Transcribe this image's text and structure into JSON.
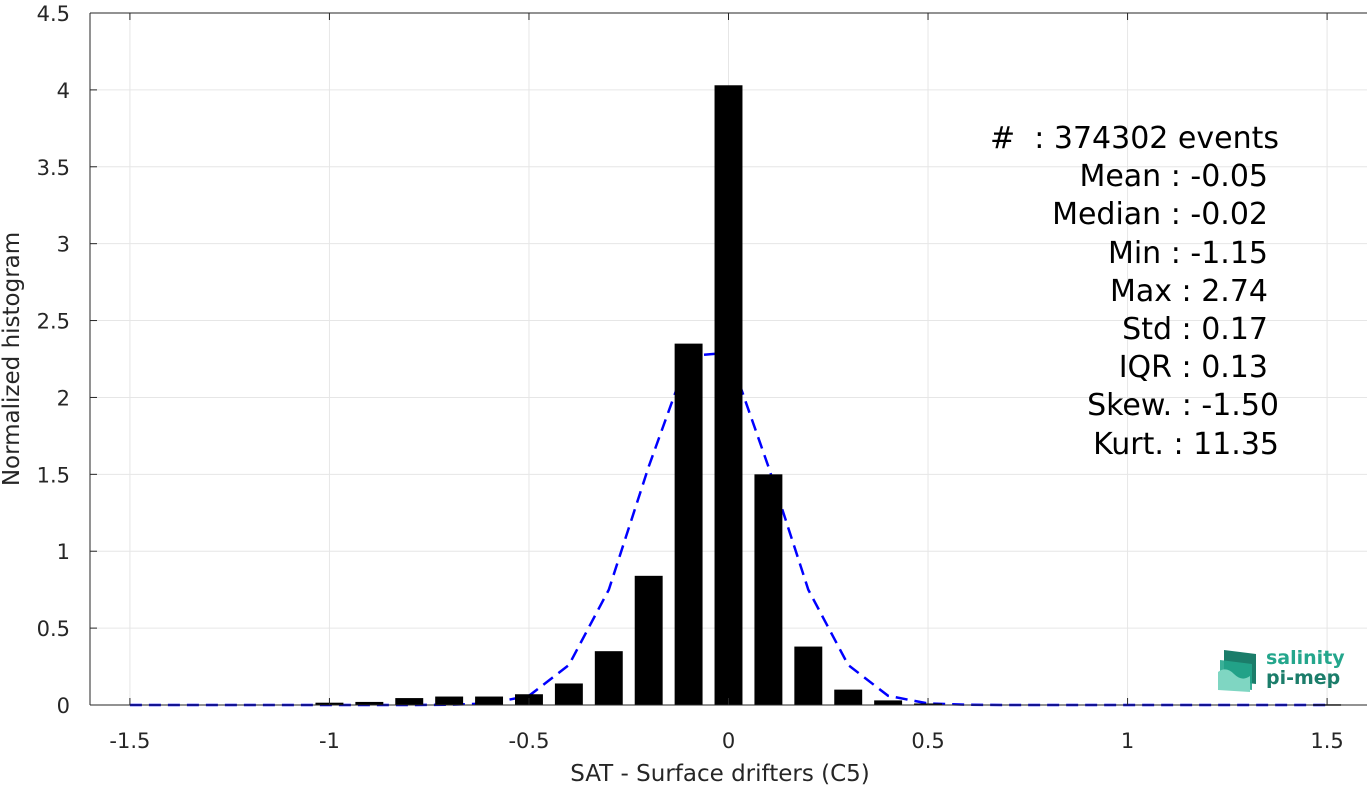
{
  "chart_data": {
    "type": "bar",
    "xlabel": "SAT - Surface drifters (C5)",
    "ylabel": "Normalized histogram",
    "xlim": [
      -1.6,
      1.6
    ],
    "ylim": [
      0,
      4.5
    ],
    "grid": true,
    "xticks": [
      -1.5,
      -1,
      -0.5,
      0,
      0.5,
      1,
      1.5
    ],
    "xtick_labels": [
      "-1.5",
      "-1",
      "-0.5",
      "0",
      "0.5",
      "1",
      "1.5"
    ],
    "yticks": [
      0,
      0.5,
      1,
      1.5,
      2,
      2.5,
      3,
      3.5,
      4,
      4.5
    ],
    "ytick_labels": [
      "0",
      "0.5",
      "1",
      "1.5",
      "2",
      "2.5",
      "3",
      "3.5",
      "4",
      "4.5"
    ],
    "bar_width": 0.07,
    "bars": {
      "x": [
        -1.0,
        -0.9,
        -0.8,
        -0.7,
        -0.6,
        -0.5,
        -0.4,
        -0.3,
        -0.2,
        -0.1,
        0.0,
        0.1,
        0.2,
        0.3,
        0.4,
        0.5,
        1.5
      ],
      "values": [
        0.015,
        0.02,
        0.045,
        0.055,
        0.055,
        0.07,
        0.14,
        0.35,
        0.84,
        2.35,
        4.03,
        1.5,
        0.38,
        0.1,
        0.03,
        0.01,
        0.005
      ]
    },
    "fit_curve": {
      "style": "dashed",
      "color": "#0000ff",
      "x": [
        -1.5,
        -1.4,
        -1.3,
        -1.2,
        -1.1,
        -1.0,
        -0.9,
        -0.8,
        -0.7,
        -0.6,
        -0.5,
        -0.4,
        -0.3,
        -0.2,
        -0.1,
        0.0,
        0.1,
        0.2,
        0.3,
        0.4,
        0.5,
        0.6,
        0.7,
        0.8,
        0.9,
        1.0,
        1.1,
        1.2,
        1.3,
        1.4,
        1.5
      ],
      "y": [
        0,
        0,
        0,
        0,
        0,
        0,
        0,
        0,
        0.002,
        0.01,
        0.06,
        0.26,
        0.75,
        1.55,
        2.27,
        2.29,
        1.55,
        0.75,
        0.26,
        0.06,
        0.01,
        0.002,
        0,
        0,
        0,
        0,
        0,
        0,
        0,
        0,
        0
      ]
    },
    "bar_color": "#000000"
  },
  "stats": [
    "#  : 374302 events",
    "Mean : -0.05",
    "Median : -0.02",
    "Min : -1.15",
    "Max : 2.74",
    "Std : 0.17",
    "IQR : 0.13",
    "Skew. : -1.50",
    "Kurt. : 11.35"
  ],
  "logo": {
    "line1": "salinity",
    "line2": "pi-mep",
    "color_light": "#24a68c",
    "color_dark": "#1b7d6a"
  }
}
